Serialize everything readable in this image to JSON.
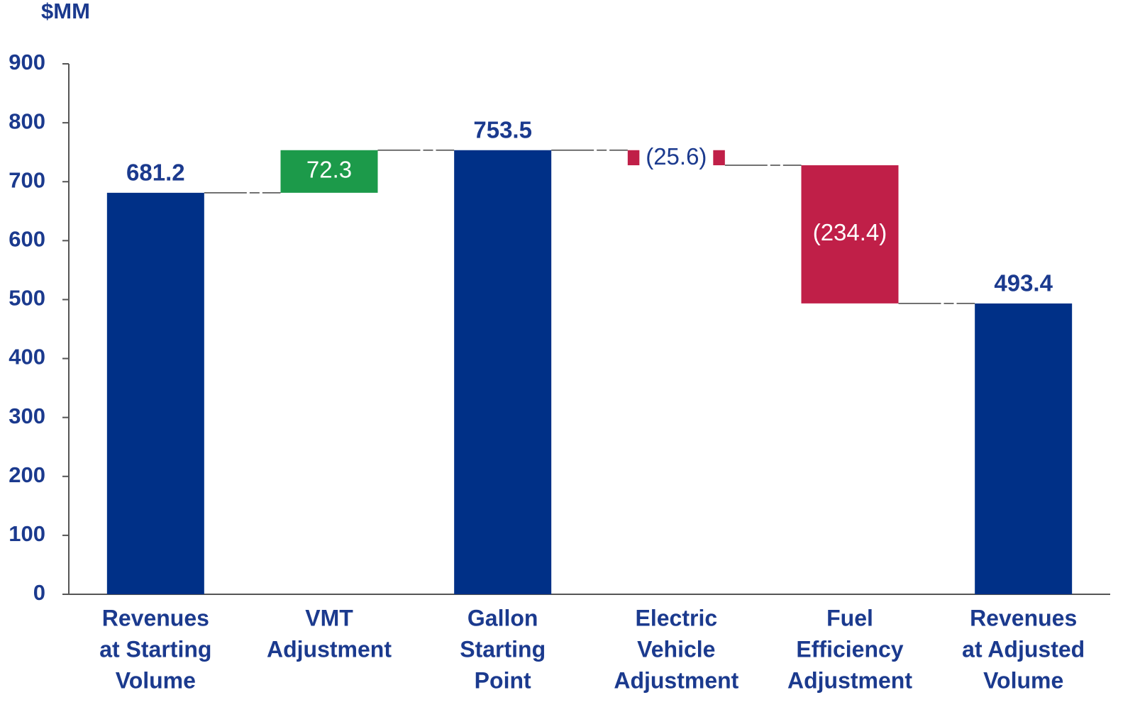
{
  "chart_data": {
    "type": "waterfall",
    "unit_label": "$MM",
    "categories": [
      [
        "Revenues",
        "at Starting",
        "Volume"
      ],
      [
        "VMT",
        "Adjustment"
      ],
      [
        "Gallon",
        "Starting",
        "Point"
      ],
      [
        "Electric",
        "Vehicle",
        "Adjustment"
      ],
      [
        "Fuel",
        "Efficiency",
        "Adjustment"
      ],
      [
        "Revenues",
        "at Adjusted",
        "Volume"
      ]
    ],
    "values": [
      681.2,
      72.3,
      753.5,
      -25.6,
      -234.4,
      493.4
    ],
    "value_labels": [
      "681.2",
      "72.3",
      "753.5",
      "(25.6)",
      "(234.4)",
      "493.4"
    ],
    "measure": [
      "absolute",
      "relative",
      "absolute",
      "relative",
      "relative",
      "absolute"
    ],
    "colors": [
      "#003087",
      "#1c9a4a",
      "#003087",
      "#c01f48",
      "#c01f48",
      "#003087"
    ],
    "ylim": [
      0,
      900
    ],
    "yticks": [
      0,
      100,
      200,
      300,
      400,
      500,
      600,
      700,
      800,
      900
    ],
    "grid": false
  }
}
